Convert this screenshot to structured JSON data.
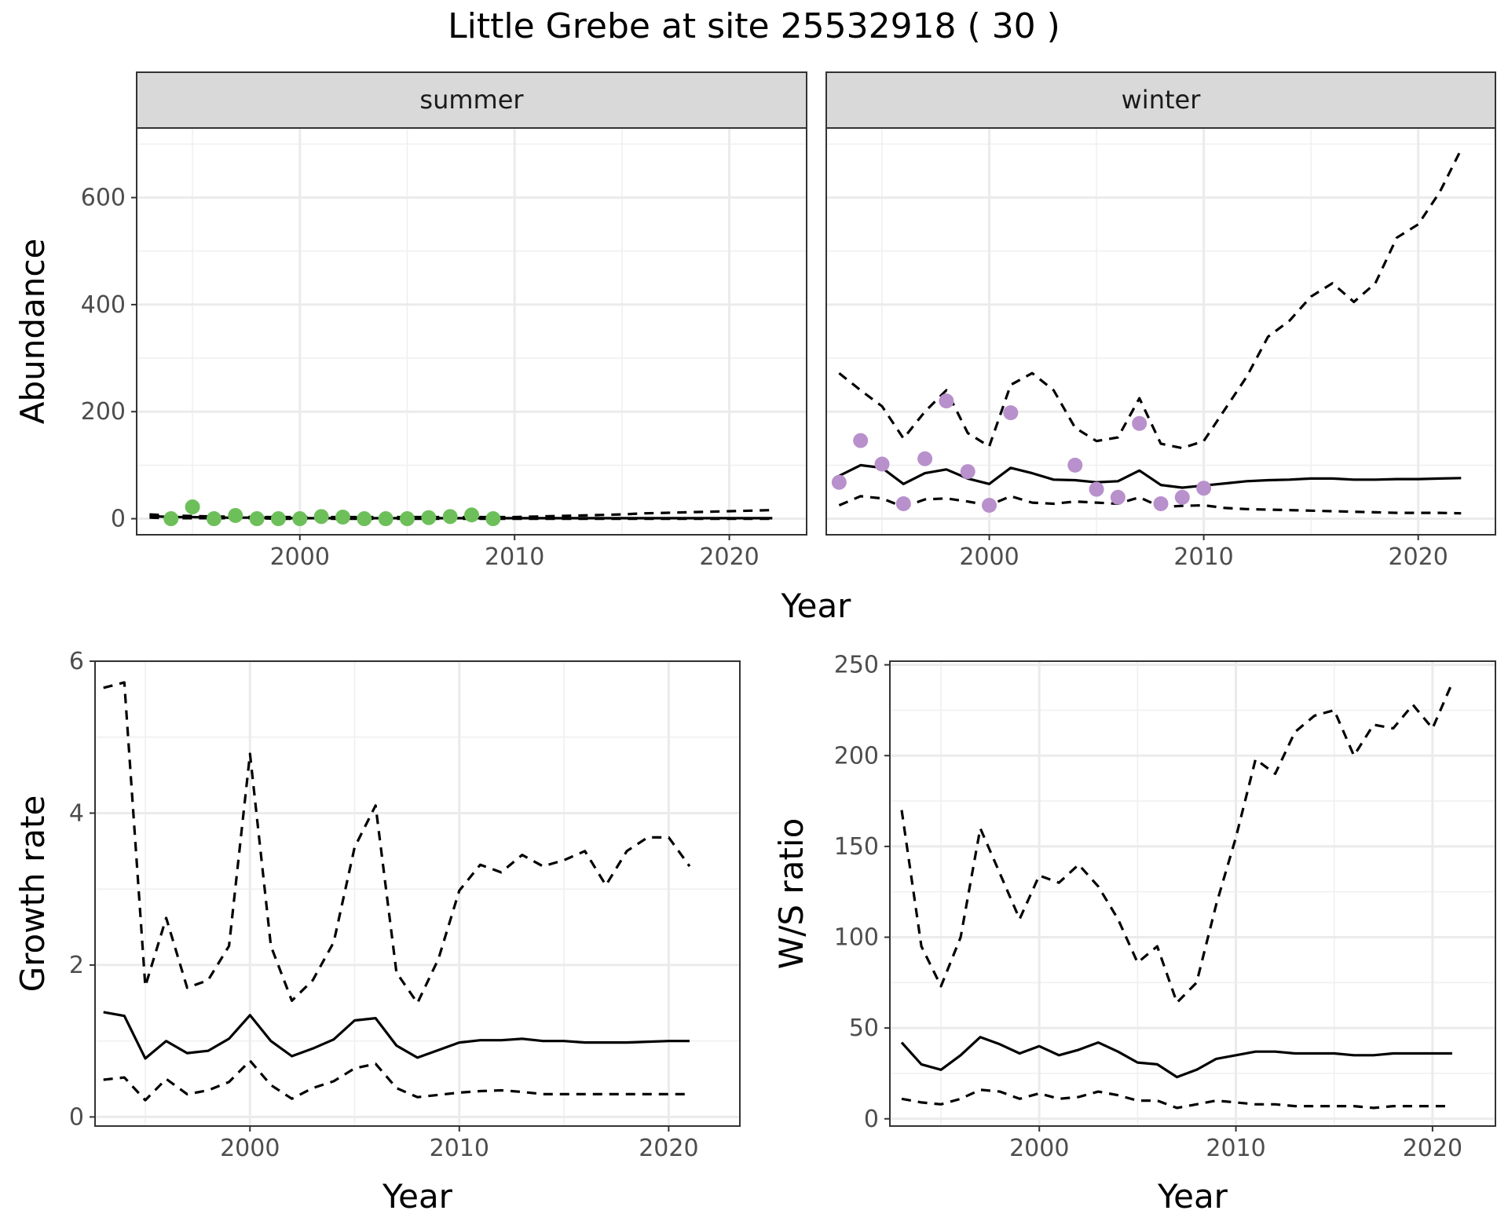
{
  "title": "Little Grebe at site 25532918 ( 30 )",
  "chart_data": [
    {
      "id": "abundance",
      "type": "line+scatter",
      "facet_labels": [
        "summer",
        "winter"
      ],
      "xlabel": "Year",
      "ylabel": "Abundance",
      "xlim": [
        1992.4,
        2023.6
      ],
      "ylim": [
        -30,
        730
      ],
      "x_ticks": [
        2000,
        2010,
        2020
      ],
      "y_ticks": [
        0,
        200,
        400,
        600
      ],
      "grid": true,
      "panels": [
        {
          "facet": "summer",
          "points_color": "#6dbf5a",
          "estimate_x": [
            1993,
            1994,
            1995,
            1996,
            1997,
            1998,
            1999,
            2000,
            2001,
            2002,
            2003,
            2004,
            2005,
            2006,
            2007,
            2008,
            2009,
            2010,
            2011,
            2012,
            2013,
            2014,
            2015,
            2016,
            2017,
            2018,
            2019,
            2020,
            2021,
            2022
          ],
          "estimate_y": [
            5,
            3,
            3,
            2,
            2,
            2,
            1,
            1,
            1,
            1,
            1,
            1,
            1,
            1,
            1,
            1,
            1,
            1,
            1,
            1,
            1,
            1,
            1,
            1,
            1,
            1,
            1,
            1,
            1,
            1
          ],
          "lower_y": [
            2,
            1,
            1,
            1,
            1,
            1,
            0,
            0,
            0,
            0,
            0,
            0,
            0,
            0,
            0,
            0,
            0,
            0,
            0,
            0,
            0,
            0,
            0,
            0,
            0,
            0,
            0,
            0,
            0,
            0
          ],
          "upper_y": [
            8,
            6,
            5,
            4,
            4,
            3,
            3,
            3,
            3,
            3,
            3,
            3,
            3,
            3,
            3,
            3,
            3,
            3,
            4,
            5,
            6,
            7,
            8,
            10,
            11,
            12,
            13,
            14,
            15,
            16
          ],
          "observed": [
            [
              1994,
              0
            ],
            [
              1995,
              22
            ],
            [
              1996,
              0
            ],
            [
              1997,
              6
            ],
            [
              1998,
              0
            ],
            [
              1999,
              0
            ],
            [
              2000,
              0
            ],
            [
              2001,
              4
            ],
            [
              2002,
              3
            ],
            [
              2003,
              0
            ],
            [
              2004,
              0
            ],
            [
              2005,
              0
            ],
            [
              2006,
              2
            ],
            [
              2007,
              4
            ],
            [
              2008,
              7
            ],
            [
              2009,
              0
            ]
          ]
        },
        {
          "facet": "winter",
          "points_color": "#b890cc",
          "estimate_x": [
            1993,
            1994,
            1995,
            1996,
            1997,
            1998,
            1999,
            2000,
            2001,
            2002,
            2003,
            2004,
            2005,
            2006,
            2007,
            2008,
            2009,
            2010,
            2011,
            2012,
            2013,
            2014,
            2015,
            2016,
            2017,
            2018,
            2019,
            2020,
            2021,
            2022
          ],
          "estimate_y": [
            80,
            100,
            95,
            65,
            85,
            92,
            75,
            65,
            95,
            85,
            73,
            72,
            68,
            70,
            90,
            63,
            58,
            62,
            66,
            70,
            72,
            73,
            75,
            75,
            73,
            73,
            74,
            74,
            75,
            76
          ],
          "lower_y": [
            25,
            42,
            38,
            22,
            36,
            38,
            32,
            25,
            42,
            30,
            28,
            32,
            30,
            28,
            40,
            22,
            24,
            25,
            20,
            18,
            17,
            16,
            15,
            14,
            13,
            12,
            11,
            11,
            11,
            10
          ],
          "upper_y": [
            272,
            240,
            210,
            150,
            200,
            240,
            160,
            135,
            250,
            272,
            240,
            170,
            145,
            152,
            225,
            140,
            132,
            145,
            205,
            265,
            340,
            370,
            415,
            440,
            405,
            440,
            525,
            550,
            610,
            690
          ],
          "observed": [
            [
              1993,
              68
            ],
            [
              1994,
              146
            ],
            [
              1995,
              102
            ],
            [
              1996,
              28
            ],
            [
              1997,
              112
            ],
            [
              1998,
              220
            ],
            [
              1999,
              88
            ],
            [
              2000,
              25
            ],
            [
              2001,
              198
            ],
            [
              2004,
              100
            ],
            [
              2005,
              55
            ],
            [
              2006,
              40
            ],
            [
              2007,
              178
            ],
            [
              2008,
              28
            ],
            [
              2009,
              40
            ],
            [
              2010,
              57
            ]
          ]
        }
      ]
    },
    {
      "id": "growth",
      "type": "line",
      "xlabel": "Year",
      "ylabel": "Growth rate",
      "xlim": [
        1992.6,
        2023.4
      ],
      "ylim": [
        -0.12,
        6.0
      ],
      "x_ticks": [
        2000,
        2010,
        2020
      ],
      "y_ticks": [
        0,
        2,
        4,
        6
      ],
      "grid": true,
      "x": [
        1993,
        1994,
        1995,
        1996,
        1997,
        1998,
        1999,
        2000,
        2001,
        2002,
        2003,
        2004,
        2005,
        2006,
        2007,
        2008,
        2009,
        2010,
        2011,
        2012,
        2013,
        2014,
        2015,
        2016,
        2017,
        2018,
        2019,
        2020,
        2021
      ],
      "estimate_y": [
        1.38,
        1.33,
        0.77,
        1.0,
        0.84,
        0.87,
        1.03,
        1.34,
        1.0,
        0.8,
        0.9,
        1.02,
        1.27,
        1.3,
        0.94,
        0.78,
        0.88,
        0.98,
        1.01,
        1.01,
        1.03,
        1.0,
        1.0,
        0.98,
        0.98,
        0.98,
        0.99,
        1.0,
        1.0
      ],
      "lower_y": [
        0.49,
        0.52,
        0.22,
        0.5,
        0.3,
        0.35,
        0.46,
        0.74,
        0.42,
        0.24,
        0.38,
        0.47,
        0.64,
        0.7,
        0.38,
        0.26,
        0.29,
        0.32,
        0.34,
        0.35,
        0.33,
        0.3,
        0.3,
        0.3,
        0.3,
        0.3,
        0.3,
        0.3,
        0.3
      ],
      "upper_y": [
        5.65,
        5.72,
        1.72,
        2.62,
        1.7,
        1.8,
        2.25,
        4.78,
        2.25,
        1.53,
        1.8,
        2.3,
        3.55,
        4.1,
        1.9,
        1.5,
        2.08,
        2.98,
        3.32,
        3.22,
        3.45,
        3.3,
        3.38,
        3.5,
        3.05,
        3.5,
        3.68,
        3.68,
        3.3
      ]
    },
    {
      "id": "ratio",
      "type": "line",
      "xlabel": "Year",
      "ylabel": "W/S ratio",
      "xlim": [
        1992.4,
        2023.2
      ],
      "ylim": [
        -4,
        252
      ],
      "x_ticks": [
        2000,
        2010,
        2020
      ],
      "y_ticks": [
        0,
        50,
        100,
        150,
        200,
        250
      ],
      "grid": true,
      "x": [
        1993,
        1994,
        1995,
        1996,
        1997,
        1998,
        1999,
        2000,
        2001,
        2002,
        2003,
        2004,
        2005,
        2006,
        2007,
        2008,
        2009,
        2010,
        2011,
        2012,
        2013,
        2014,
        2015,
        2016,
        2017,
        2018,
        2019,
        2020,
        2021
      ],
      "estimate_y": [
        42,
        30,
        27,
        35,
        45,
        41,
        36,
        40,
        35,
        38,
        42,
        37,
        31,
        30,
        23,
        27,
        33,
        35,
        37,
        37,
        36,
        36,
        36,
        35,
        35,
        36,
        36,
        36,
        36
      ],
      "lower_y": [
        11,
        9,
        8,
        11,
        16,
        15,
        11,
        14,
        11,
        12,
        15,
        13,
        10,
        10,
        6,
        8,
        10,
        9,
        8,
        8,
        7,
        7,
        7,
        7,
        6,
        7,
        7,
        7,
        7
      ],
      "upper_y": [
        170,
        95,
        73,
        100,
        160,
        135,
        110,
        134,
        130,
        140,
        128,
        110,
        86,
        95,
        64,
        75,
        118,
        155,
        198,
        190,
        213,
        222,
        225,
        200,
        217,
        215,
        228,
        215,
        240
      ]
    }
  ]
}
